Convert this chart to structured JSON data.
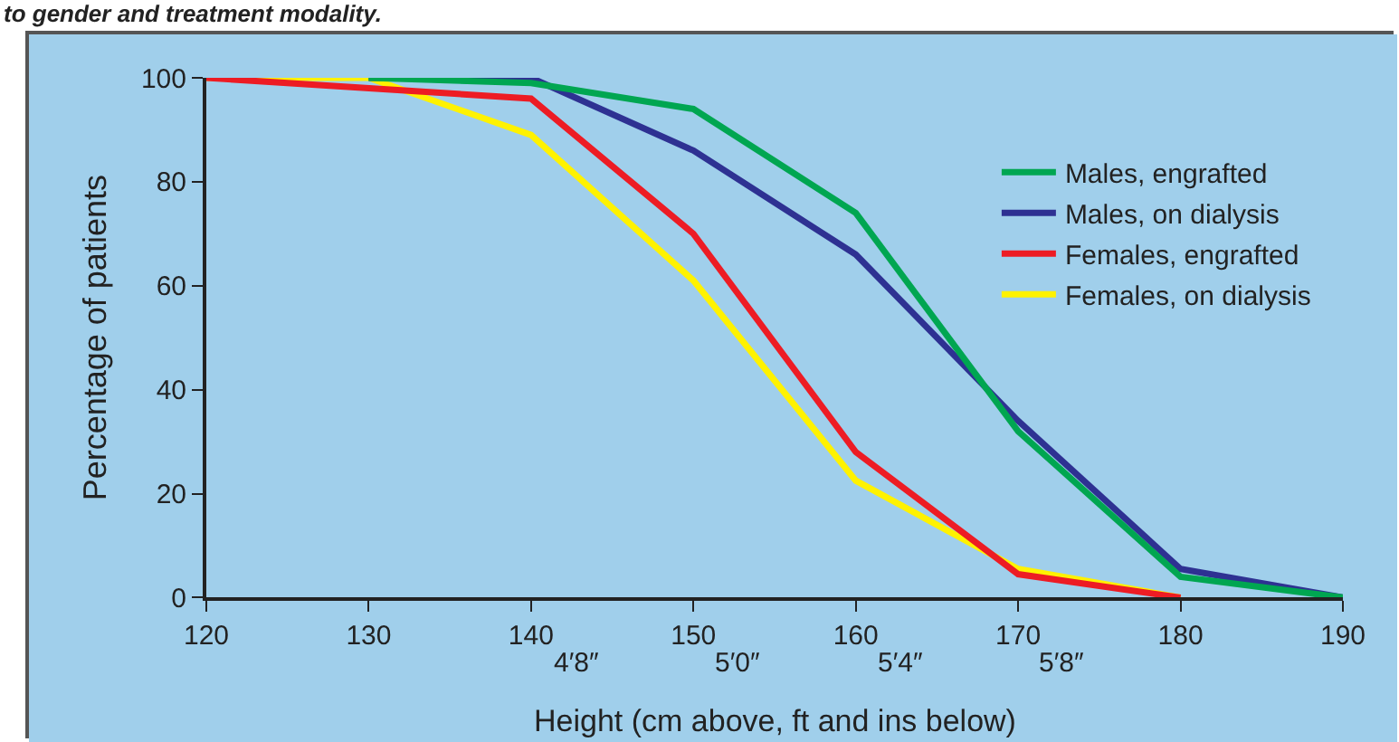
{
  "chart_data": {
    "type": "line",
    "title": "to gender and treatment modality.",
    "xlabel": "Height (cm above, ft and ins below)",
    "ylabel": "Percentage of patients",
    "xlim": [
      120,
      190
    ],
    "xticks": [
      120,
      130,
      140,
      150,
      160,
      170,
      180,
      190
    ],
    "annotations": [
      "4′8″",
      "5′0″",
      "5′4″",
      "5′8″"
    ],
    "ylim": [
      0,
      100
    ],
    "yticks": [
      0,
      20,
      40,
      60,
      80,
      100
    ],
    "grid": false,
    "legend": "top right",
    "marker": "none",
    "line_style": "solid",
    "series": [
      {
        "name": "Males, engrafted",
        "color": "#00a651",
        "x": [
          130,
          140,
          150,
          160,
          170,
          180,
          190
        ],
        "values": [
          100,
          99,
          94,
          74,
          32,
          4,
          0
        ]
      },
      {
        "name": "Males, on dialysis",
        "color": "#2e3192",
        "x": [
          130,
          140,
          150,
          160,
          170,
          180,
          190
        ],
        "values": [
          100,
          100,
          86,
          66,
          34,
          5.5,
          0
        ]
      },
      {
        "name": "Females, engrafted",
        "color": "#ed1c24",
        "x": [
          120,
          140,
          150,
          160,
          170,
          180
        ],
        "values": [
          100,
          96,
          70,
          28,
          4.5,
          0
        ]
      },
      {
        "name": "Females, on dialysis",
        "color": "#fff200",
        "x": [
          120,
          130,
          140,
          150,
          160,
          170,
          180
        ],
        "values": [
          100,
          100,
          89,
          61,
          22.5,
          5.5,
          0
        ]
      }
    ]
  }
}
